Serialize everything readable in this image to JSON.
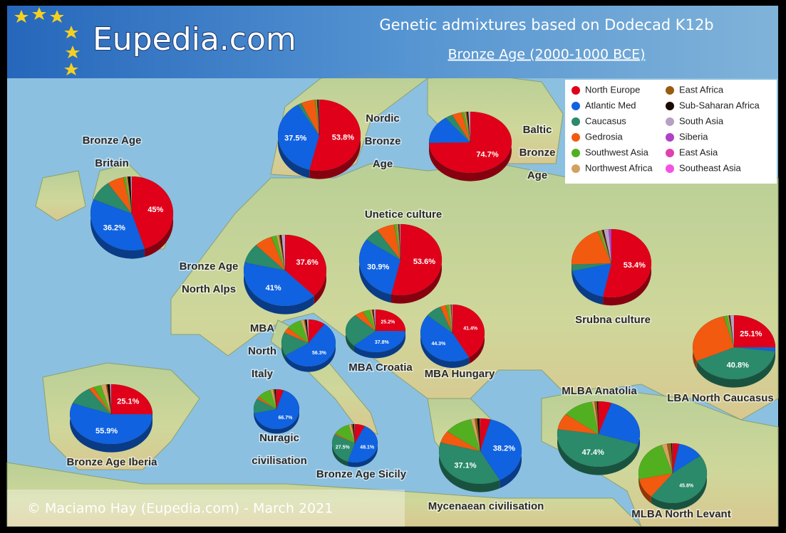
{
  "header": {
    "site": "Eupedia.com",
    "title": "Genetic admixtures based on Dodecad K12b",
    "subtitle": "Bronze Age (2000-1000 BCE)"
  },
  "footer": "© Maciamo Hay (Eupedia.com) - March 2021",
  "legend": [
    {
      "name": "North Europe",
      "color": "#e0001a"
    },
    {
      "name": "Atlantic Med",
      "color": "#1062e0"
    },
    {
      "name": "Caucasus",
      "color": "#2a8a6a"
    },
    {
      "name": "Gedrosia",
      "color": "#f25a10"
    },
    {
      "name": "Southwest Asia",
      "color": "#52b020"
    },
    {
      "name": "Northwest Africa",
      "color": "#d4a062"
    },
    {
      "name": "East Africa",
      "color": "#9a5a10"
    },
    {
      "name": "Sub-Saharan Africa",
      "color": "#1a0a00"
    },
    {
      "name": "South Asia",
      "color": "#b8a0c4"
    },
    {
      "name": "Siberia",
      "color": "#b040c8"
    },
    {
      "name": "East Asia",
      "color": "#e040b0"
    },
    {
      "name": "Southeast Asia",
      "color": "#f452e4"
    }
  ],
  "pies": [
    {
      "label": [
        "Bronze Age",
        "Britain"
      ],
      "values": [
        45,
        36.2,
        9,
        6.5,
        1,
        0.5,
        0.3,
        1,
        0.5,
        0,
        0,
        0
      ],
      "value_labels": [
        "45%",
        "36.2%",
        null,
        null,
        null,
        null,
        null,
        null,
        null,
        null,
        null,
        null
      ]
    },
    {
      "label": [
        "Nordic",
        "Bronze",
        "Age"
      ],
      "values": [
        53.8,
        37.5,
        1.5,
        5.5,
        0.5,
        0.3,
        0.2,
        0.5,
        0.2,
        0,
        0,
        0
      ],
      "value_labels": [
        "53.8%",
        "37.5%",
        null,
        null,
        null,
        null,
        null,
        null,
        null,
        null,
        null,
        null
      ]
    },
    {
      "label": [
        "Baltic",
        "Bronze",
        "Age"
      ],
      "values": [
        74.7,
        15,
        3,
        4,
        1,
        0.5,
        0.5,
        0.5,
        0.8,
        0,
        0,
        0
      ],
      "value_labels": [
        "74.7%",
        null,
        null,
        null,
        null,
        null,
        null,
        null,
        null,
        null,
        null,
        null
      ]
    },
    {
      "label": [
        "Bronze Age",
        "North Alps"
      ],
      "values": [
        37.6,
        41,
        9,
        7,
        2,
        1,
        0.5,
        0.5,
        1.4,
        0,
        0,
        0
      ],
      "value_labels": [
        "37.6%",
        "41%",
        null,
        null,
        null,
        null,
        null,
        null,
        null,
        null,
        null,
        null
      ]
    },
    {
      "label": [
        "Unetice culture"
      ],
      "values": [
        53.6,
        30.9,
        6,
        7,
        1,
        0.5,
        0.3,
        0.3,
        0.4,
        0,
        0,
        0
      ],
      "value_labels": [
        "53.6%",
        "30.9%",
        null,
        null,
        null,
        null,
        null,
        null,
        null,
        null,
        null,
        null
      ]
    },
    {
      "label": [
        "Srubna culture"
      ],
      "values": [
        53.4,
        18,
        3,
        20,
        1,
        0.5,
        0.5,
        0.5,
        2,
        1.1,
        0,
        0
      ],
      "value_labels": [
        "53.4%",
        null,
        null,
        null,
        null,
        null,
        null,
        null,
        null,
        null,
        null,
        null
      ]
    },
    {
      "label": [
        "MBA",
        "North",
        "Italy"
      ],
      "values": [
        10,
        56.3,
        16,
        4,
        9,
        2,
        0.7,
        1,
        1,
        0,
        0,
        0
      ],
      "value_labels": [
        null,
        "56.3%",
        null,
        null,
        null,
        null,
        null,
        null,
        null,
        null,
        null,
        null
      ]
    },
    {
      "label": [
        "MBA Croatia"
      ],
      "values": [
        25.2,
        37.8,
        25,
        5,
        4,
        1,
        0.5,
        0.5,
        1,
        0,
        0,
        0
      ],
      "value_labels": [
        "25.2%",
        "37.8%",
        null,
        null,
        null,
        null,
        null,
        null,
        null,
        null,
        null,
        null
      ]
    },
    {
      "label": [
        "MBA Hungary"
      ],
      "values": [
        41.4,
        44.3,
        8,
        3,
        1.5,
        0.8,
        0.3,
        0.2,
        0.5,
        0,
        0,
        0
      ],
      "value_labels": [
        "41.4%",
        "44.3%",
        null,
        null,
        null,
        null,
        null,
        null,
        null,
        null,
        null,
        null
      ]
    },
    {
      "label": [
        "LBA North Caucasus"
      ],
      "values": [
        25.1,
        2,
        40.8,
        28,
        1.5,
        0.5,
        0.3,
        0.3,
        1.5,
        0,
        0,
        0
      ],
      "value_labels": [
        "25.1%",
        null,
        "40.8%",
        null,
        null,
        null,
        null,
        null,
        null,
        null,
        null,
        null
      ]
    },
    {
      "label": [
        "Bronze Age Iberia"
      ],
      "values": [
        25.1,
        55.9,
        10,
        2,
        3,
        2,
        0.5,
        1,
        0.5,
        0,
        0,
        0
      ],
      "value_labels": [
        "25.1%",
        "55.9%",
        null,
        null,
        null,
        null,
        null,
        null,
        null,
        null,
        null,
        null
      ]
    },
    {
      "label": [
        "Nuragic",
        "civilisation"
      ],
      "values": [
        5,
        66.7,
        12,
        2,
        10,
        2,
        1,
        1,
        0.3,
        0,
        0,
        0
      ],
      "value_labels": [
        null,
        "66.7%",
        null,
        null,
        null,
        null,
        null,
        null,
        null,
        null,
        null,
        null
      ]
    },
    {
      "label": [
        "Bronze Age Sicily"
      ],
      "values": [
        7,
        48.1,
        27.5,
        1,
        12,
        2,
        1,
        1,
        0.4,
        0,
        0,
        0
      ],
      "value_labels": [
        null,
        "48.1%",
        "27.5%",
        null,
        null,
        null,
        null,
        null,
        null,
        null,
        null,
        null
      ]
    },
    {
      "label": [
        "Mycenaean civilisation"
      ],
      "values": [
        4,
        38.2,
        37.1,
        6,
        11,
        1.5,
        1,
        1,
        0.2,
        0,
        0,
        0
      ],
      "value_labels": [
        null,
        "38.2%",
        "37.1%",
        null,
        null,
        null,
        null,
        null,
        null,
        null,
        null,
        null
      ]
    },
    {
      "label": [
        "MLBA Anatolia"
      ],
      "values": [
        5,
        25,
        47.4,
        8,
        12,
        1,
        1,
        0.5,
        0.1,
        0,
        0,
        0
      ],
      "value_labels": [
        null,
        null,
        "47.4%",
        null,
        null,
        null,
        null,
        null,
        null,
        null,
        null,
        null
      ]
    },
    {
      "label": [
        "MLBA North Levant"
      ],
      "values": [
        3,
        12,
        45.8,
        11,
        23,
        2.5,
        2,
        0.5,
        0.2,
        0,
        0,
        0
      ],
      "value_labels": [
        null,
        null,
        "45.8%",
        null,
        null,
        null,
        null,
        null,
        null,
        null,
        null,
        null
      ]
    }
  ]
}
